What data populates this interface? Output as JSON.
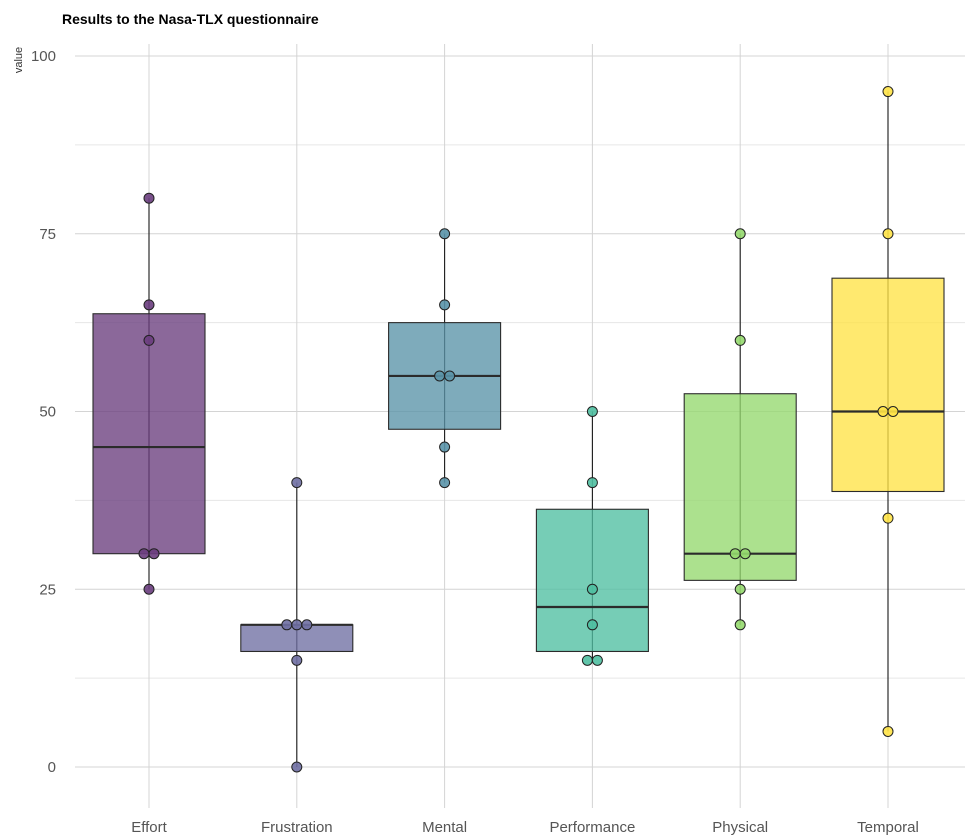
{
  "chart_data": {
    "type": "boxplot",
    "title": "Results to the Nasa-TLX questionnaire",
    "xlabel": "",
    "ylabel": "value",
    "ylim": [
      0,
      100
    ],
    "y_ticks": [
      0,
      25,
      50,
      75,
      100
    ],
    "grid": true,
    "legend": "none",
    "categories": [
      "Effort",
      "Frustration",
      "Mental",
      "Performance",
      "Physical",
      "Temporal"
    ],
    "colors": [
      "#6a3d7e",
      "#6f6fa3",
      "#5a93a8",
      "#4fbfa1",
      "#95d96e",
      "#ffe347"
    ],
    "boxes": [
      {
        "category": "Effort",
        "whisker_low": 25,
        "q1": 30,
        "median": 45,
        "q3": 63.75,
        "whisker_high": 80
      },
      {
        "category": "Frustration",
        "whisker_low": 0,
        "q1": 16.25,
        "median": 20,
        "q3": 20,
        "whisker_high": 40
      },
      {
        "category": "Mental",
        "whisker_low": 40,
        "q1": 47.5,
        "median": 55,
        "q3": 62.5,
        "whisker_high": 75
      },
      {
        "category": "Performance",
        "whisker_low": 15,
        "q1": 16.25,
        "median": 22.5,
        "q3": 36.25,
        "whisker_high": 50
      },
      {
        "category": "Physical",
        "whisker_low": 20,
        "q1": 26.25,
        "median": 30,
        "q3": 52.5,
        "whisker_high": 75
      },
      {
        "category": "Temporal",
        "whisker_low": 5,
        "q1": 38.75,
        "median": 50,
        "q3": 68.75,
        "whisker_high": 95
      }
    ],
    "points": [
      {
        "category": "Effort",
        "values": [
          80,
          65,
          60,
          30,
          30,
          25
        ]
      },
      {
        "category": "Frustration",
        "values": [
          40,
          20,
          20,
          20,
          15,
          0
        ]
      },
      {
        "category": "Mental",
        "values": [
          75,
          65,
          55,
          55,
          45,
          40
        ]
      },
      {
        "category": "Performance",
        "values": [
          50,
          40,
          25,
          20,
          15,
          15
        ]
      },
      {
        "category": "Physical",
        "values": [
          75,
          60,
          30,
          30,
          25,
          20
        ]
      },
      {
        "category": "Temporal",
        "values": [
          95,
          75,
          50,
          50,
          35,
          5
        ]
      }
    ]
  }
}
